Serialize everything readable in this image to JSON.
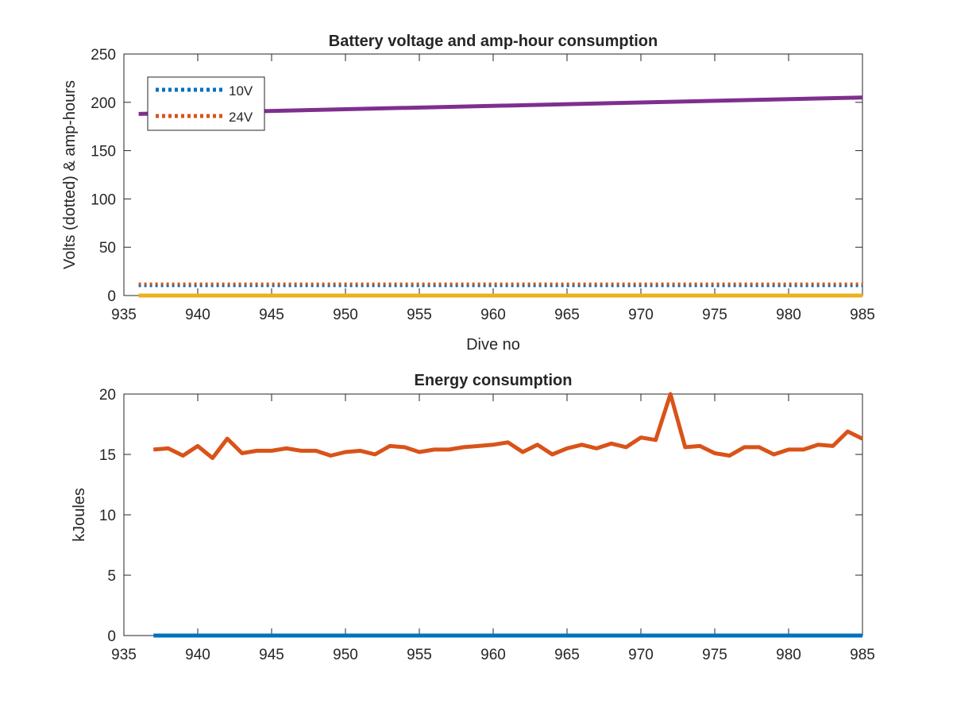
{
  "chart_data": [
    {
      "type": "line",
      "title": "Battery voltage and amp-hour consumption",
      "xlabel": "Dive no",
      "ylabel": "Volts (dotted) & amp-hours",
      "xlim": [
        935,
        985
      ],
      "ylim": [
        0,
        250
      ],
      "xticks": [
        935,
        940,
        945,
        950,
        955,
        960,
        965,
        970,
        975,
        980,
        985
      ],
      "yticks": [
        0,
        50,
        100,
        150,
        200,
        250
      ],
      "grid": false,
      "legend_position": "top-left",
      "series": [
        {
          "name": "10V",
          "style": "dotted",
          "color": "#0072BD",
          "x": [
            936,
            985
          ],
          "y": [
            10.2,
            10.2
          ]
        },
        {
          "name": "24V",
          "style": "dotted",
          "color": "#D95319",
          "x": [
            936,
            985
          ],
          "y": [
            12,
            12
          ]
        },
        {
          "style": "solid",
          "color": "#7E2F8E",
          "x": [
            936,
            985
          ],
          "y": [
            188,
            205
          ]
        },
        {
          "style": "solid",
          "color": "#EDB120",
          "x": [
            936,
            985
          ],
          "y": [
            0,
            0
          ]
        }
      ]
    },
    {
      "type": "line",
      "title": "Energy consumption",
      "xlabel": "",
      "ylabel": "kJoules",
      "xlim": [
        935,
        985
      ],
      "ylim": [
        0,
        20
      ],
      "xticks": [
        935,
        940,
        945,
        950,
        955,
        960,
        965,
        970,
        975,
        980,
        985
      ],
      "yticks": [
        0,
        5,
        10,
        15,
        20
      ],
      "grid": false,
      "series": [
        {
          "style": "solid",
          "color": "#0072BD",
          "x": [
            937,
            985
          ],
          "y": [
            0,
            0
          ]
        },
        {
          "style": "solid",
          "color": "#D95319",
          "x": [
            937,
            938,
            939,
            940,
            941,
            942,
            943,
            944,
            945,
            946,
            947,
            948,
            949,
            950,
            951,
            952,
            953,
            954,
            955,
            956,
            957,
            958,
            959,
            960,
            961,
            962,
            963,
            964,
            965,
            966,
            967,
            968,
            969,
            970,
            971,
            972,
            973,
            974,
            975,
            976,
            977,
            978,
            979,
            980,
            981,
            982,
            983,
            984,
            985
          ],
          "y": [
            15.4,
            15.5,
            14.9,
            15.7,
            14.7,
            16.3,
            15.1,
            15.3,
            15.3,
            15.5,
            15.3,
            15.3,
            14.9,
            15.2,
            15.3,
            15.0,
            15.7,
            15.6,
            15.2,
            15.4,
            15.4,
            15.6,
            15.7,
            15.8,
            16.0,
            15.2,
            15.8,
            15.0,
            15.5,
            15.8,
            15.5,
            15.9,
            15.6,
            16.4,
            16.2,
            20.0,
            15.6,
            15.7,
            15.1,
            14.9,
            15.6,
            15.6,
            15.0,
            15.4,
            15.4,
            15.8,
            15.7,
            16.9,
            16.3
          ]
        }
      ]
    }
  ]
}
